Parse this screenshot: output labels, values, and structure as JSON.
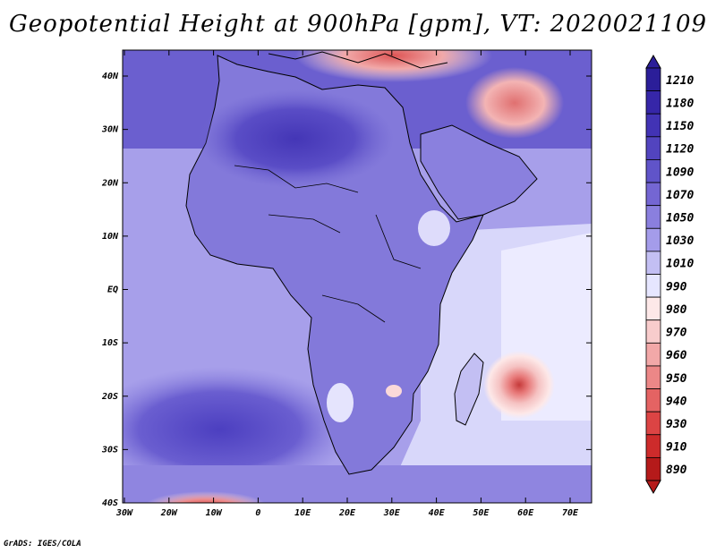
{
  "title": "Geopotential Height at 900hPa [gpm], VT: 2020021109",
  "footer": "GrADS: IGES/COLA",
  "axes": {
    "lat_labels": [
      "40N",
      "30N",
      "20N",
      "10N",
      "EQ",
      "10S",
      "20S",
      "30S",
      "40S"
    ],
    "lon_labels": [
      "30W",
      "20W",
      "10W",
      "0",
      "10E",
      "20E",
      "30E",
      "40E",
      "50E",
      "60E",
      "70E"
    ]
  },
  "colorbar": {
    "levels": [
      "1210",
      "1180",
      "1150",
      "1120",
      "1090",
      "1070",
      "1050",
      "1030",
      "1010",
      "990",
      "980",
      "970",
      "960",
      "950",
      "940",
      "930",
      "910",
      "890"
    ],
    "colors": [
      "#2b1e99",
      "#3626a8",
      "#4233b5",
      "#5244bf",
      "#6054c9",
      "#7466d3",
      "#8a7fde",
      "#a49cea",
      "#c3bff3",
      "#e6e6ff",
      "#fde8e8",
      "#f8cccc",
      "#f2a8a8",
      "#ec8787",
      "#e46363",
      "#dc4444",
      "#cd2b2b",
      "#b51a1a"
    ]
  },
  "colors": {
    "ocean_base": "#a79fea",
    "land_high": "#5a4dc6",
    "low_pressure": "#e87a7a"
  }
}
